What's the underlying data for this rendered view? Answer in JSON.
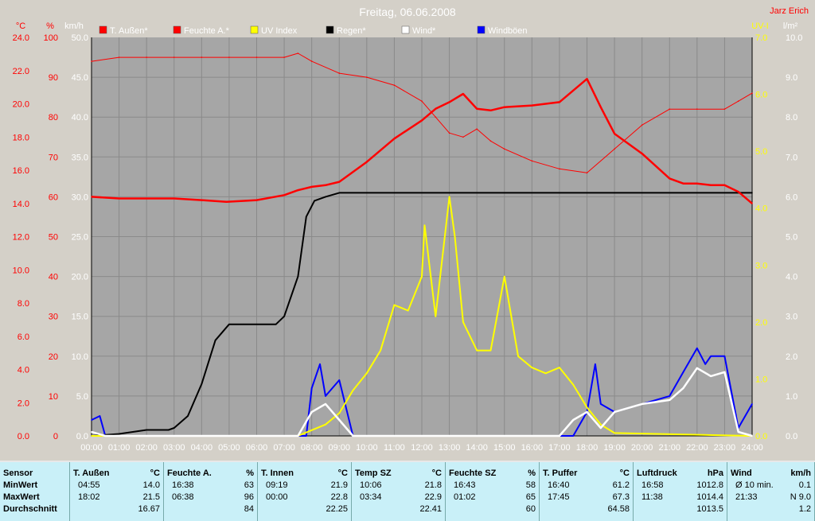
{
  "chart_data": {
    "type": "line",
    "title": "Freitag, 06.06.2008",
    "author": "Jarz Erich",
    "x_axis": {
      "min": 0,
      "max": 24,
      "tick_labels": [
        "00:00",
        "01:00",
        "02:00",
        "03:00",
        "04:00",
        "05:00",
        "06:00",
        "07:00",
        "08:00",
        "09:00",
        "10:00",
        "11:00",
        "12:00",
        "13:00",
        "14:00",
        "15:00",
        "16:00",
        "17:00",
        "18:00",
        "19:00",
        "20:00",
        "21:00",
        "22:00",
        "23:00",
        "24:00"
      ]
    },
    "y_axes": {
      "temp": {
        "unit": "°C",
        "min": 0,
        "max": 24,
        "tick_labels": [
          "0.0",
          "2.0",
          "4.0",
          "6.0",
          "8.0",
          "10.0",
          "12.0",
          "14.0",
          "16.0",
          "18.0",
          "20.0",
          "22.0",
          "24.0"
        ]
      },
      "humidity": {
        "unit": "%",
        "min": 0,
        "max": 100,
        "tick_labels": [
          "0",
          "10",
          "20",
          "30",
          "40",
          "50",
          "60",
          "70",
          "80",
          "90",
          "100"
        ]
      },
      "wind": {
        "unit": "km/h",
        "min": 0,
        "max": 50,
        "tick_labels": [
          "0.0",
          "5.0",
          "10.0",
          "15.0",
          "20.0",
          "25.0",
          "30.0",
          "35.0",
          "40.0",
          "45.0",
          "50.0"
        ]
      },
      "uv": {
        "unit": "UV-I",
        "min": 0,
        "max": 7,
        "tick_labels": [
          "0.0",
          "1.0",
          "2.0",
          "3.0",
          "4.0",
          "5.0",
          "6.0",
          "7.0"
        ]
      },
      "rain": {
        "unit": "l/m²",
        "min": 0,
        "max": 10,
        "tick_labels": [
          "0.0",
          "1.0",
          "2.0",
          "3.0",
          "4.0",
          "5.0",
          "6.0",
          "7.0",
          "8.0",
          "9.0",
          "10.0"
        ]
      }
    },
    "grid": true,
    "legend_position": "top",
    "series": [
      {
        "name": "T. Außen*",
        "color": "#ff0000",
        "axis": "temp",
        "x": [
          0,
          1,
          2,
          3,
          4,
          4.9,
          6,
          7,
          7.5,
          8,
          8.5,
          9,
          10,
          11,
          12,
          12.5,
          13,
          13.5,
          14,
          14.5,
          15,
          16,
          17,
          17.5,
          18,
          18.5,
          19,
          20,
          21,
          21.5,
          22,
          22.5,
          23,
          23.5,
          24
        ],
        "values": [
          14.4,
          14.3,
          14.3,
          14.3,
          14.2,
          14.1,
          14.2,
          14.5,
          14.8,
          15.0,
          15.1,
          15.3,
          16.5,
          17.9,
          19.0,
          19.7,
          20.1,
          20.6,
          19.7,
          19.6,
          19.8,
          19.9,
          20.1,
          20.8,
          21.5,
          19.8,
          18.2,
          17.0,
          15.5,
          15.2,
          15.2,
          15.1,
          15.1,
          14.7,
          14.0
        ]
      },
      {
        "name": "Feuchte A.*",
        "color": "#ff0000",
        "axis": "humidity",
        "x": [
          0,
          1,
          2,
          3,
          4,
          5,
          6,
          7,
          7.5,
          8,
          9,
          10,
          11,
          12,
          12.5,
          13,
          13.5,
          14,
          14.5,
          15,
          16,
          17,
          18,
          19,
          20,
          21,
          22,
          23,
          23.5,
          24
        ],
        "values": [
          94,
          95,
          95,
          95,
          95,
          95,
          95,
          95,
          96,
          94,
          91,
          90,
          88,
          84,
          80,
          76,
          75,
          77,
          74,
          72,
          69,
          67,
          66,
          72,
          78,
          82,
          82,
          82,
          84,
          86
        ]
      },
      {
        "name": "UV Index",
        "color": "#ffff00",
        "axis": "uv",
        "x": [
          0,
          7.5,
          8,
          8.5,
          9,
          9.5,
          10,
          10.5,
          11,
          11.5,
          12,
          12.1,
          12.5,
          13,
          13.2,
          13.5,
          14,
          14.5,
          15,
          15.5,
          16,
          16.5,
          17,
          17.5,
          18,
          18.5,
          19,
          24
        ],
        "values": [
          0,
          0,
          0.1,
          0.2,
          0.4,
          0.8,
          1.1,
          1.5,
          2.3,
          2.2,
          2.8,
          3.7,
          2.1,
          4.2,
          3.5,
          2.0,
          1.5,
          1.5,
          2.8,
          1.4,
          1.2,
          1.1,
          1.2,
          0.9,
          0.5,
          0.2,
          0.05,
          0
        ]
      },
      {
        "name": "Regen*",
        "color": "#000000",
        "axis": "rain",
        "x": [
          0,
          1,
          2,
          2.8,
          3,
          3.5,
          4,
          4.5,
          5,
          5.5,
          6,
          6.7,
          7,
          7.5,
          7.8,
          8.1,
          8.5,
          9,
          24
        ],
        "values": [
          0,
          0.05,
          0.15,
          0.15,
          0.2,
          0.5,
          1.3,
          2.4,
          2.8,
          2.8,
          2.8,
          2.8,
          3.0,
          4.0,
          5.5,
          5.9,
          6.0,
          6.1,
          6.1
        ]
      },
      {
        "name": "Wind*",
        "color": "#ffffff",
        "axis": "wind",
        "x": [
          0,
          0.5,
          7.5,
          8,
          8.5,
          9,
          9.5,
          17,
          17.5,
          18,
          18.5,
          19,
          20,
          21,
          21.5,
          22,
          22.5,
          23,
          23.5,
          24
        ],
        "values": [
          0.5,
          0,
          0,
          3,
          4,
          2,
          0,
          0,
          2,
          3,
          1,
          3,
          4,
          4.5,
          6,
          8.5,
          7.5,
          8,
          0.5,
          0
        ]
      },
      {
        "name": "Windböen",
        "color": "#0000ff",
        "axis": "wind",
        "x": [
          0,
          0.3,
          0.5,
          7.8,
          8,
          8.3,
          8.5,
          9,
          9.5,
          17.5,
          18,
          18.3,
          18.5,
          19,
          20,
          21,
          21.5,
          22,
          22.3,
          22.5,
          23,
          23.5,
          24
        ],
        "values": [
          2,
          2.5,
          0,
          0,
          6,
          9,
          5,
          7,
          0,
          0,
          3,
          9,
          4,
          3,
          4,
          5,
          8,
          11,
          9,
          10,
          10,
          1,
          4
        ]
      }
    ]
  },
  "stats": {
    "columns": [
      {
        "label": "Sensor",
        "unit": "",
        "rows": [
          {
            "t": "",
            "v": ""
          },
          {
            "t": "",
            "v": ""
          },
          {
            "t": "",
            "v": ""
          }
        ],
        "row_labels": [
          "MinWert",
          "MaxWert",
          "Durchschnitt"
        ]
      },
      {
        "label": "T. Außen",
        "unit": "°C",
        "rows": [
          {
            "t": "04:55",
            "v": "14.0"
          },
          {
            "t": "18:02",
            "v": "21.5"
          },
          {
            "t": "",
            "v": "16.67"
          }
        ]
      },
      {
        "label": "Feuchte A.",
        "unit": "%",
        "rows": [
          {
            "t": "16:38",
            "v": "63"
          },
          {
            "t": "06:38",
            "v": "96"
          },
          {
            "t": "",
            "v": "84"
          }
        ]
      },
      {
        "label": "T. Innen",
        "unit": "°C",
        "rows": [
          {
            "t": "09:19",
            "v": "21.9"
          },
          {
            "t": "00:00",
            "v": "22.8"
          },
          {
            "t": "",
            "v": "22.25"
          }
        ]
      },
      {
        "label": "Temp SZ",
        "unit": "°C",
        "rows": [
          {
            "t": "10:06",
            "v": "21.8"
          },
          {
            "t": "03:34",
            "v": "22.9"
          },
          {
            "t": "",
            "v": "22.41"
          }
        ]
      },
      {
        "label": "Feuchte SZ",
        "unit": "%",
        "rows": [
          {
            "t": "16:43",
            "v": "58"
          },
          {
            "t": "01:02",
            "v": "65"
          },
          {
            "t": "",
            "v": "60"
          }
        ]
      },
      {
        "label": "T. Puffer",
        "unit": "°C",
        "rows": [
          {
            "t": "16:40",
            "v": "61.2"
          },
          {
            "t": "17:45",
            "v": "67.3"
          },
          {
            "t": "",
            "v": "64.58"
          }
        ]
      },
      {
        "label": "Luftdruck",
        "unit": "hPa",
        "rows": [
          {
            "t": "16:58",
            "v": "1012.8"
          },
          {
            "t": "11:38",
            "v": "1014.4"
          },
          {
            "t": "",
            "v": "1013.5"
          }
        ]
      },
      {
        "label": "Wind",
        "unit": "km/h",
        "rows": [
          {
            "t": "Ø 10 min.",
            "v": "0.1"
          },
          {
            "t": "21:33",
            "v": "N 9.0"
          },
          {
            "t": "",
            "v": "1.2"
          }
        ]
      }
    ]
  }
}
